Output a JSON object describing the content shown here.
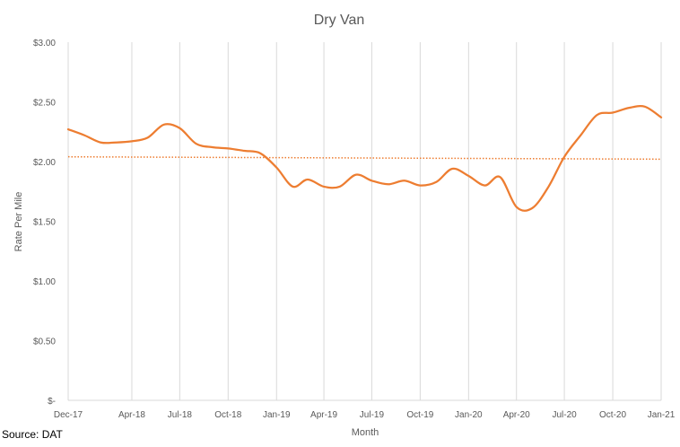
{
  "source_note": "Source: DAT",
  "chart_data": {
    "type": "line",
    "title": "Dry Van",
    "xlabel": "Month",
    "ylabel": "Rate Per Mile",
    "ylim": [
      0,
      3
    ],
    "y_ticks": [
      0,
      0.5,
      1,
      1.5,
      2,
      2.5,
      3
    ],
    "y_tick_labels": [
      "$-",
      "$0.50",
      "$1.00",
      "$1.50",
      "$2.00",
      "$2.50",
      "$3.00"
    ],
    "x_tick_labels": [
      "Dec-17",
      "Apr-18",
      "Jul-18",
      "Oct-18",
      "Jan-19",
      "Apr-19",
      "Jul-19",
      "Oct-19",
      "Jan-20",
      "Apr-20",
      "Jul-20",
      "Oct-20",
      "Jan-21"
    ],
    "x_tick_dates": [
      "2017-12-01",
      "2018-04-01",
      "2018-07-01",
      "2018-10-01",
      "2019-01-01",
      "2019-04-01",
      "2019-07-01",
      "2019-10-01",
      "2020-01-01",
      "2020-04-01",
      "2020-07-01",
      "2020-10-01",
      "2021-01-01"
    ],
    "xlim": [
      "2017-12-01",
      "2021-01-01"
    ],
    "grid": {
      "vertical": true,
      "horizontal": false
    },
    "legend": "none",
    "series": [
      {
        "color": "#ED7D31",
        "style": "solid",
        "points": [
          {
            "x": "2017-12-01",
            "y": 2.27
          },
          {
            "x": "2018-01-01",
            "y": 2.22
          },
          {
            "x": "2018-02-01",
            "y": 2.16
          },
          {
            "x": "2018-03-01",
            "y": 2.16
          },
          {
            "x": "2018-04-01",
            "y": 2.17
          },
          {
            "x": "2018-05-01",
            "y": 2.2
          },
          {
            "x": "2018-06-01",
            "y": 2.31
          },
          {
            "x": "2018-07-01",
            "y": 2.28
          },
          {
            "x": "2018-08-01",
            "y": 2.15
          },
          {
            "x": "2018-09-01",
            "y": 2.12
          },
          {
            "x": "2018-10-01",
            "y": 2.11
          },
          {
            "x": "2018-11-01",
            "y": 2.09
          },
          {
            "x": "2018-12-01",
            "y": 2.07
          },
          {
            "x": "2019-01-01",
            "y": 1.95
          },
          {
            "x": "2019-02-01",
            "y": 1.79
          },
          {
            "x": "2019-03-01",
            "y": 1.85
          },
          {
            "x": "2019-04-01",
            "y": 1.79
          },
          {
            "x": "2019-05-01",
            "y": 1.79
          },
          {
            "x": "2019-06-01",
            "y": 1.89
          },
          {
            "x": "2019-07-01",
            "y": 1.84
          },
          {
            "x": "2019-08-01",
            "y": 1.81
          },
          {
            "x": "2019-09-01",
            "y": 1.84
          },
          {
            "x": "2019-10-01",
            "y": 1.8
          },
          {
            "x": "2019-11-01",
            "y": 1.83
          },
          {
            "x": "2019-12-01",
            "y": 1.94
          },
          {
            "x": "2020-01-01",
            "y": 1.88
          },
          {
            "x": "2020-02-01",
            "y": 1.8
          },
          {
            "x": "2020-03-01",
            "y": 1.87
          },
          {
            "x": "2020-04-01",
            "y": 1.62
          },
          {
            "x": "2020-05-01",
            "y": 1.61
          },
          {
            "x": "2020-06-01",
            "y": 1.79
          },
          {
            "x": "2020-07-01",
            "y": 2.04
          },
          {
            "x": "2020-08-01",
            "y": 2.22
          },
          {
            "x": "2020-09-01",
            "y": 2.39
          },
          {
            "x": "2020-10-01",
            "y": 2.41
          },
          {
            "x": "2020-11-01",
            "y": 2.45
          },
          {
            "x": "2020-12-01",
            "y": 2.46
          },
          {
            "x": "2021-01-01",
            "y": 2.37
          }
        ]
      },
      {
        "color": "#ED7D31",
        "style": "dotted",
        "kind": "trendline",
        "points": [
          {
            "x": "2017-12-01",
            "y": 2.04
          },
          {
            "x": "2021-01-01",
            "y": 2.02
          }
        ]
      }
    ]
  }
}
